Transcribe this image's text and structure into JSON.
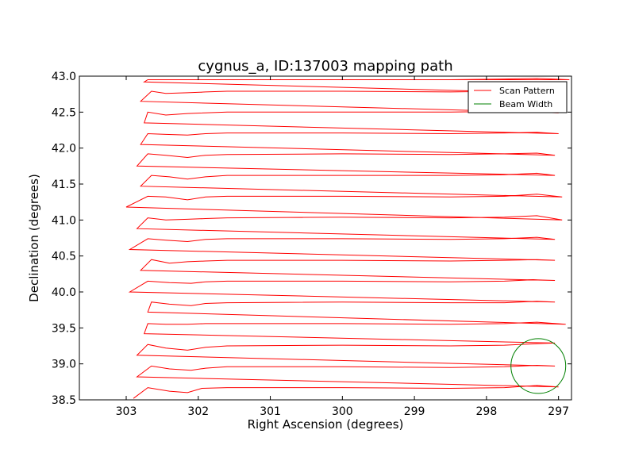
{
  "chart_data": {
    "type": "line",
    "title": "cygnus_a, ID:137003 mapping path",
    "xlabel": "Right Ascension (degrees)",
    "ylabel": "Declination (degrees)",
    "xlim": [
      303.65,
      296.82
    ],
    "ylim": [
      38.5,
      43.0
    ],
    "x_ticks": [
      "303",
      "302",
      "301",
      "300",
      "299",
      "298",
      "297"
    ],
    "x_tick_values": [
      303,
      302,
      301,
      300,
      299,
      298,
      297
    ],
    "y_ticks": [
      "38.5",
      "39.0",
      "39.5",
      "40.0",
      "40.5",
      "41.0",
      "41.5",
      "42.0",
      "42.5",
      "43.0"
    ],
    "y_tick_values": [
      38.5,
      39.0,
      39.5,
      40.0,
      40.5,
      41.0,
      41.5,
      42.0,
      42.5,
      43.0
    ],
    "grid": false,
    "legend_position": "top-right",
    "colors": {
      "scan": "#ff0000",
      "beam": "#008000"
    },
    "series": [
      {
        "name": "Scan Pattern",
        "x": [
          302.9,
          302.7,
          302.4,
          302.15,
          301.95,
          301.6,
          300,
          298.5,
          297.75,
          297.3,
          297.0,
          302.85,
          302.65,
          302.4,
          302.1,
          301.9,
          301.6,
          300,
          298.5,
          297.75,
          297.3,
          297.05,
          302.85,
          302.7,
          302.45,
          302.15,
          301.9,
          301.6,
          300,
          298.5,
          297.75,
          297.3,
          297.05,
          302.75,
          302.7,
          302.45,
          302.15,
          301.9,
          301.6,
          300,
          298.5,
          297.75,
          297.3,
          296.9,
          302.7,
          302.65,
          302.4,
          302.1,
          301.9,
          301.6,
          300,
          298.5,
          297.75,
          297.3,
          297.05,
          302.95,
          302.7,
          302.4,
          302.1,
          301.9,
          301.6,
          300,
          298.5,
          297.75,
          297.35,
          297.05,
          302.8,
          302.65,
          302.4,
          302.15,
          301.9,
          301.6,
          300,
          298.5,
          297.75,
          297.3,
          297.05,
          302.95,
          302.7,
          302.45,
          302.15,
          301.9,
          301.6,
          300,
          298.5,
          297.75,
          297.3,
          297.05,
          302.85,
          302.7,
          302.45,
          302.15,
          301.9,
          301.6,
          300,
          298.5,
          297.75,
          297.3,
          296.95,
          303.0,
          302.7,
          302.45,
          302.15,
          301.9,
          301.6,
          300,
          298.5,
          297.75,
          297.3,
          296.95,
          302.8,
          302.65,
          302.4,
          302.15,
          301.9,
          301.6,
          300,
          298.5,
          297.75,
          297.3,
          297.05,
          302.85,
          302.7,
          302.45,
          302.15,
          301.9,
          301.6,
          300,
          298.5,
          297.75,
          297.3,
          297.05,
          302.8,
          302.7,
          302.45,
          302.15,
          301.9,
          301.6,
          300,
          298.5,
          297.75,
          297.3,
          297.0,
          302.75,
          302.7,
          302.45,
          302.15,
          301.9,
          301.6,
          300,
          298.5,
          297.75,
          297.3,
          297.0,
          302.8,
          302.65,
          302.45,
          302.15,
          301.9,
          301.6,
          300,
          298.5,
          297.75,
          297.3,
          296.9,
          302.75,
          302.7,
          302.45,
          302.15,
          301.9,
          301.6,
          300,
          298.5,
          297.75,
          297.3,
          296.85,
          302.7
        ],
        "y": [
          38.52,
          38.67,
          38.62,
          38.6,
          38.66,
          38.67,
          38.67,
          38.66,
          38.67,
          38.7,
          38.68,
          38.82,
          38.97,
          38.93,
          38.91,
          38.94,
          38.96,
          38.96,
          38.95,
          38.96,
          38.98,
          38.97,
          39.12,
          39.27,
          39.22,
          39.19,
          39.23,
          39.25,
          39.26,
          39.25,
          39.26,
          39.28,
          39.29,
          39.42,
          39.56,
          39.55,
          39.55,
          39.56,
          39.56,
          39.56,
          39.55,
          39.56,
          39.58,
          39.55,
          39.72,
          39.86,
          39.83,
          39.81,
          39.84,
          39.85,
          39.86,
          39.85,
          39.85,
          39.87,
          39.86,
          40.0,
          40.15,
          40.13,
          40.12,
          40.14,
          40.15,
          40.15,
          40.14,
          40.15,
          40.17,
          40.16,
          40.3,
          40.45,
          40.4,
          40.42,
          40.43,
          40.44,
          40.44,
          40.43,
          40.44,
          40.45,
          40.44,
          40.59,
          40.74,
          40.72,
          40.7,
          40.73,
          40.74,
          40.74,
          40.73,
          40.74,
          40.76,
          40.73,
          40.88,
          41.03,
          41.0,
          41.01,
          41.02,
          41.03,
          41.04,
          41.03,
          41.04,
          41.06,
          41.0,
          41.18,
          41.33,
          41.32,
          41.28,
          41.32,
          41.33,
          41.33,
          41.32,
          41.33,
          41.36,
          41.32,
          41.47,
          41.62,
          41.6,
          41.57,
          41.6,
          41.62,
          41.62,
          41.62,
          41.63,
          41.65,
          41.62,
          41.75,
          41.92,
          41.9,
          41.87,
          41.9,
          41.91,
          41.92,
          41.91,
          41.92,
          41.93,
          41.9,
          42.05,
          42.2,
          42.19,
          42.18,
          42.2,
          42.21,
          42.21,
          42.2,
          42.21,
          42.22,
          42.2,
          42.35,
          42.5,
          42.46,
          42.48,
          42.49,
          42.5,
          42.5,
          42.5,
          42.51,
          42.52,
          42.49,
          42.65,
          42.79,
          42.76,
          42.77,
          42.78,
          42.79,
          42.79,
          42.78,
          42.79,
          42.8,
          42.76,
          42.92,
          42.95,
          42.95,
          42.95,
          42.95,
          42.95,
          42.95,
          42.95,
          42.96,
          42.97,
          42.95,
          42.95
        ]
      },
      {
        "name": "Beam Width",
        "center": [
          297.28,
          38.97
        ],
        "radius_x": 0.38,
        "radius_y": 0.38
      }
    ]
  }
}
